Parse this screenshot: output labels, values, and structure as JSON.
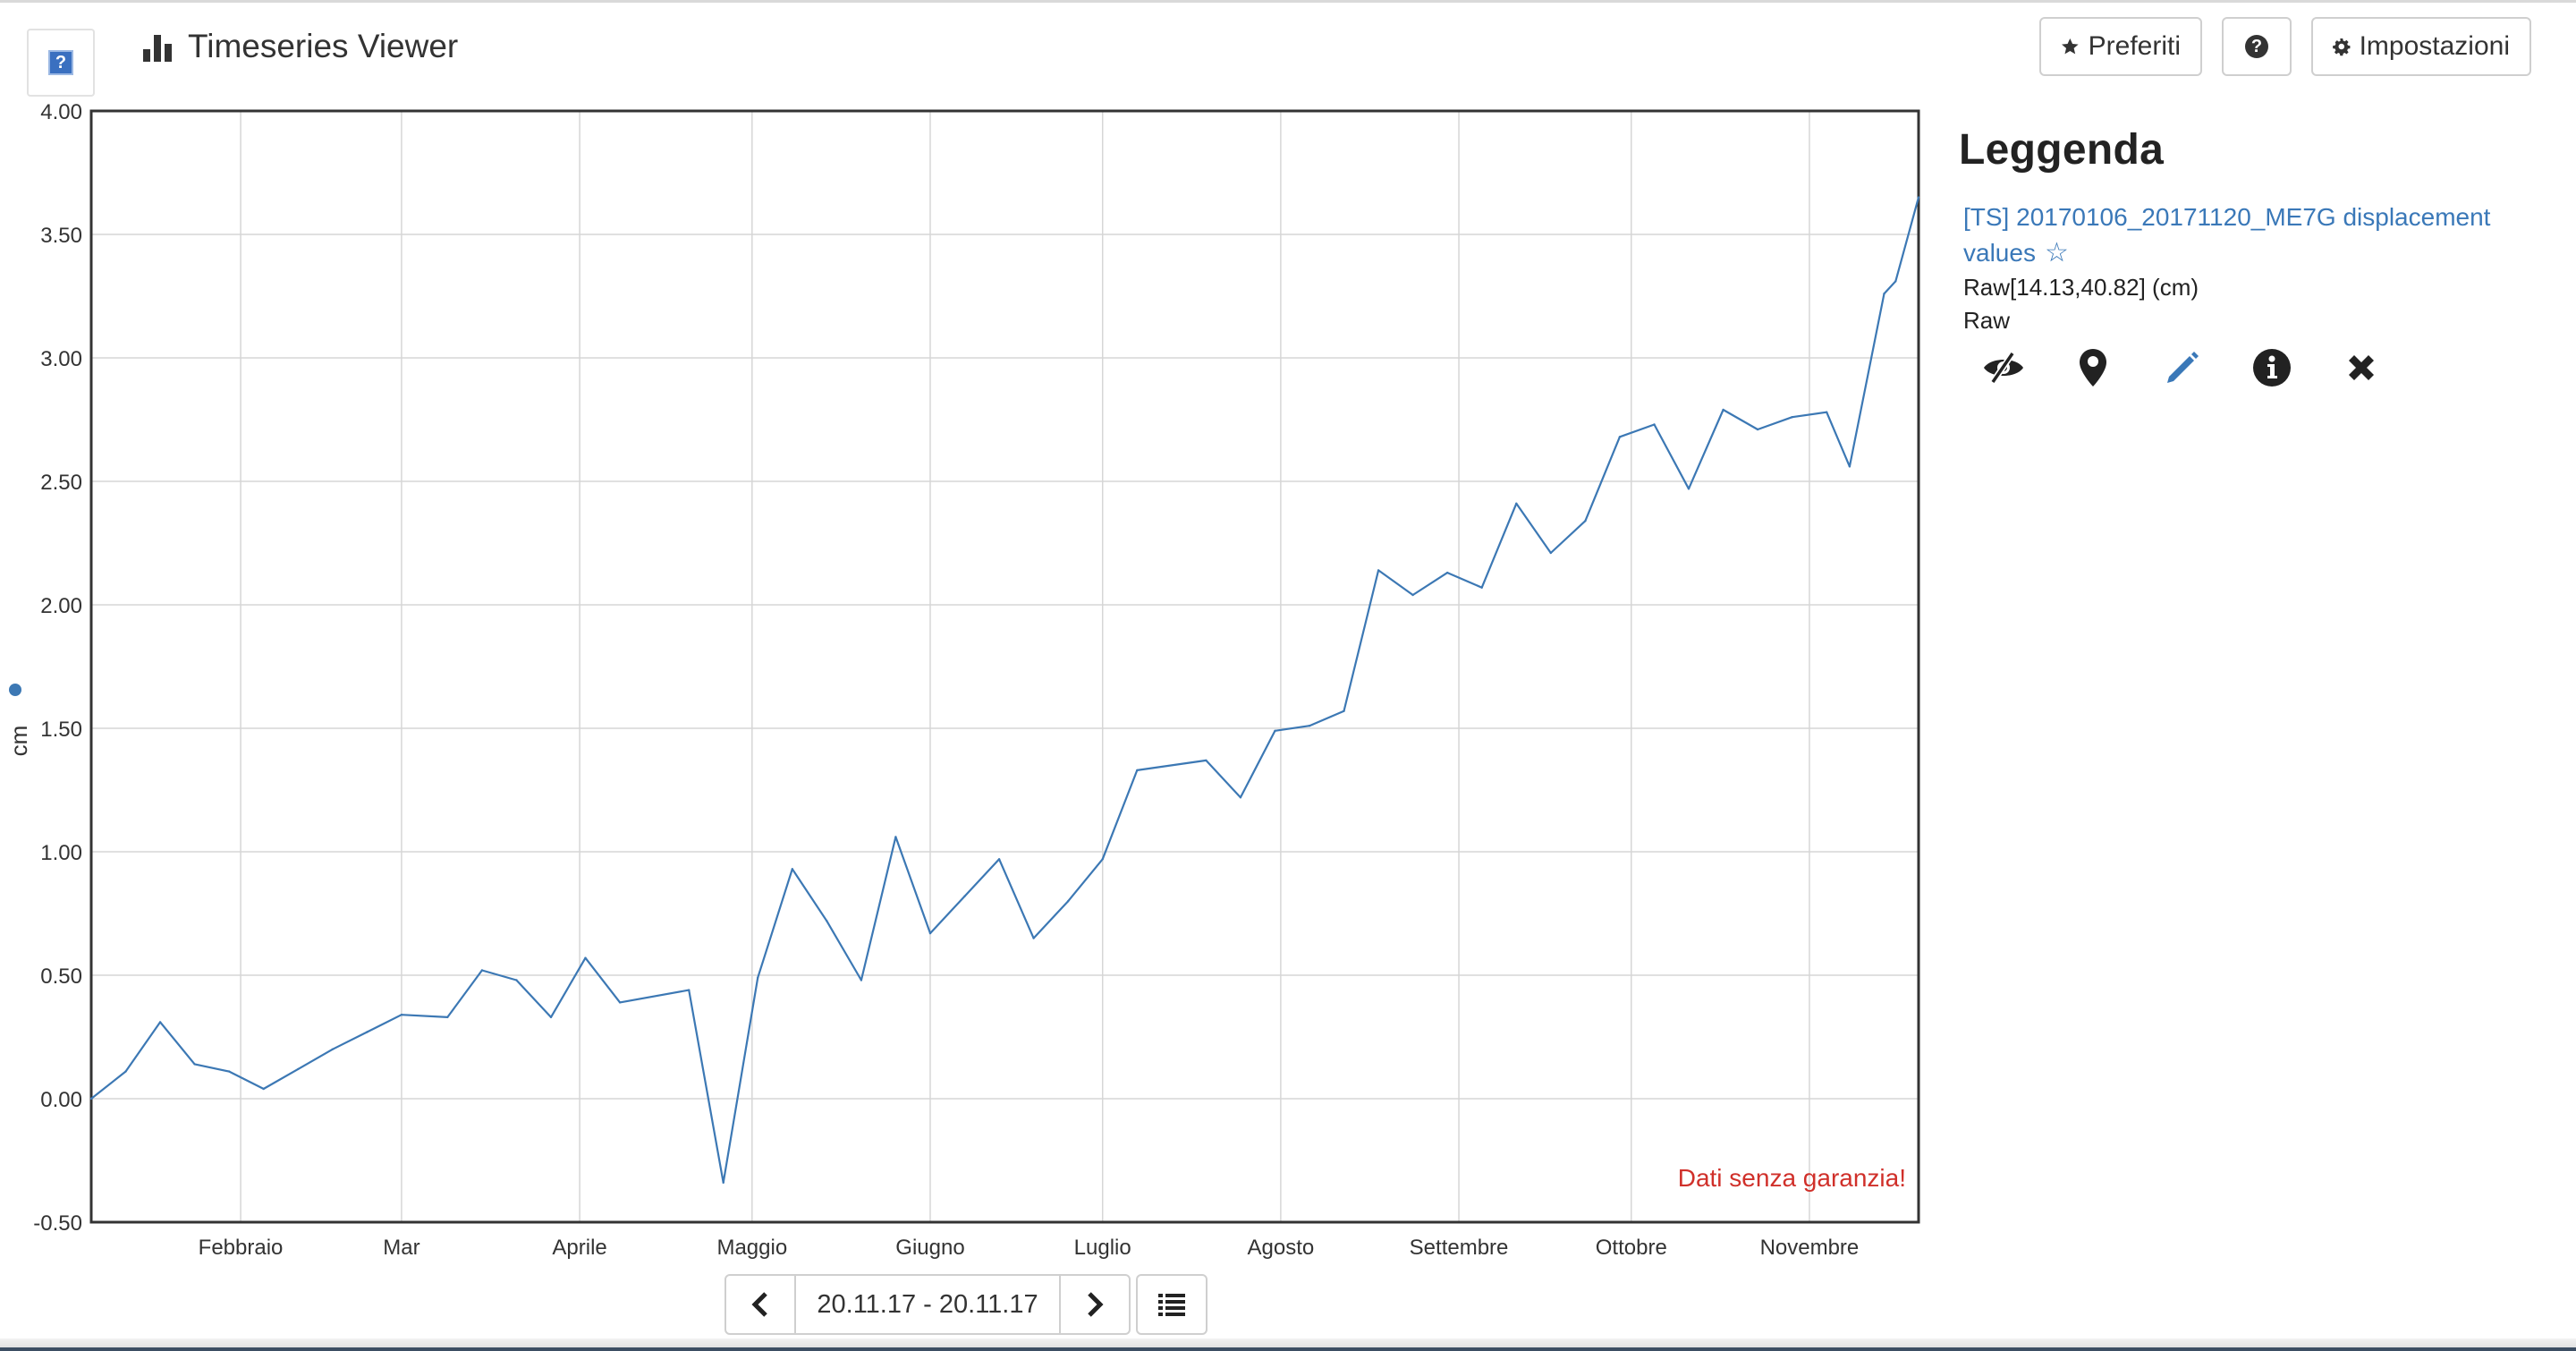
{
  "header": {
    "logo_glyph": "?",
    "title": "Timeseries Viewer",
    "title_icon": "bar-chart-icon",
    "buttons": {
      "favorites": "Preferiti",
      "favorites_icon": "star-icon",
      "help_icon": "question-circle-icon",
      "settings": "Impostazioni",
      "settings_icon": "gear-icon"
    }
  },
  "chart_data": {
    "type": "line",
    "title": "",
    "xlabel": "",
    "ylabel": "cm",
    "ylim": [
      -0.5,
      4.0
    ],
    "y_ticks": [
      "-0.50",
      "0.00",
      "0.50",
      "1.00",
      "1.50",
      "2.00",
      "2.50",
      "3.00",
      "3.50",
      "4.00"
    ],
    "xlim": [
      "2017-01-06",
      "2017-11-20"
    ],
    "x_tick_labels": [
      {
        "date": "2017-02-01",
        "label": "Febbraio"
      },
      {
        "date": "2017-03-01",
        "label": "Mar"
      },
      {
        "date": "2017-04-01",
        "label": "Aprile"
      },
      {
        "date": "2017-05-01",
        "label": "Maggio"
      },
      {
        "date": "2017-06-01",
        "label": "Giugno"
      },
      {
        "date": "2017-07-01",
        "label": "Luglio"
      },
      {
        "date": "2017-08-01",
        "label": "Agosto"
      },
      {
        "date": "2017-09-01",
        "label": "Settembre"
      },
      {
        "date": "2017-10-01",
        "label": "Ottobre"
      },
      {
        "date": "2017-11-01",
        "label": "Novembre"
      }
    ],
    "grid": true,
    "annotation": "Dati senza garanzia!",
    "series": [
      {
        "color": "#3c78b4",
        "points": [
          [
            "2017-01-06",
            0.0
          ],
          [
            "2017-01-12",
            0.11
          ],
          [
            "2017-01-18",
            0.31
          ],
          [
            "2017-01-24",
            0.14
          ],
          [
            "2017-01-30",
            0.11
          ],
          [
            "2017-02-05",
            0.04
          ],
          [
            "2017-02-11",
            0.12
          ],
          [
            "2017-02-17",
            0.2
          ],
          [
            "2017-02-23",
            0.27
          ],
          [
            "2017-03-01",
            0.34
          ],
          [
            "2017-03-09",
            0.33
          ],
          [
            "2017-03-15",
            0.52
          ],
          [
            "2017-03-21",
            0.48
          ],
          [
            "2017-03-27",
            0.33
          ],
          [
            "2017-04-02",
            0.57
          ],
          [
            "2017-04-08",
            0.39
          ],
          [
            "2017-04-20",
            0.44
          ],
          [
            "2017-04-26",
            -0.34
          ],
          [
            "2017-05-02",
            0.49
          ],
          [
            "2017-05-08",
            0.93
          ],
          [
            "2017-05-14",
            0.72
          ],
          [
            "2017-05-20",
            0.48
          ],
          [
            "2017-05-26",
            1.06
          ],
          [
            "2017-06-01",
            0.67
          ],
          [
            "2017-06-07",
            0.82
          ],
          [
            "2017-06-13",
            0.97
          ],
          [
            "2017-06-19",
            0.65
          ],
          [
            "2017-06-25",
            0.8
          ],
          [
            "2017-07-01",
            0.97
          ],
          [
            "2017-07-07",
            1.33
          ],
          [
            "2017-07-19",
            1.37
          ],
          [
            "2017-07-25",
            1.22
          ],
          [
            "2017-07-31",
            1.49
          ],
          [
            "2017-08-06",
            1.51
          ],
          [
            "2017-08-12",
            1.57
          ],
          [
            "2017-08-18",
            2.14
          ],
          [
            "2017-08-24",
            2.04
          ],
          [
            "2017-08-30",
            2.13
          ],
          [
            "2017-09-05",
            2.07
          ],
          [
            "2017-09-11",
            2.41
          ],
          [
            "2017-09-17",
            2.21
          ],
          [
            "2017-09-23",
            2.34
          ],
          [
            "2017-09-29",
            2.68
          ],
          [
            "2017-10-05",
            2.73
          ],
          [
            "2017-10-11",
            2.47
          ],
          [
            "2017-10-17",
            2.79
          ],
          [
            "2017-10-23",
            2.71
          ],
          [
            "2017-10-29",
            2.76
          ],
          [
            "2017-11-04",
            2.78
          ],
          [
            "2017-11-08",
            2.56
          ],
          [
            "2017-11-14",
            3.26
          ],
          [
            "2017-11-16",
            3.31
          ],
          [
            "2017-11-20",
            3.65
          ]
        ]
      }
    ]
  },
  "legend": {
    "title": "Leggenda",
    "series_label": "[TS] 20170106_20171120_ME7G displacement values",
    "series_star_icon": "star-outline-icon",
    "raw_location": "Raw[14.13,40.82] (cm)",
    "raw_label": "Raw",
    "actions": [
      "eye-slash-icon",
      "map-marker-icon",
      "pencil-icon",
      "info-circle-icon",
      "close-icon"
    ],
    "accent_color": "#3a78b8"
  },
  "time_nav": {
    "range": "20.11.17 - 20.11.17",
    "prev_icon": "chevron-left-icon",
    "next_icon": "chevron-right-icon",
    "list_icon": "list-icon"
  }
}
